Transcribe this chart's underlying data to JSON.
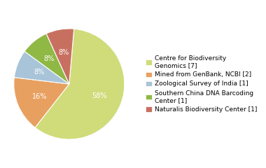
{
  "labels": [
    "Centre for Biodiversity\nGenomics [7]",
    "Mined from GenBank, NCBI [2]",
    "Zoological Survey of India [1]",
    "Southern China DNA Barcoding\nCenter [1]",
    "Naturalis Biodiversity Center [1]"
  ],
  "values": [
    58,
    16,
    8,
    8,
    8
  ],
  "colors": [
    "#d0db7a",
    "#e8a060",
    "#a8c4d8",
    "#90b845",
    "#c87060"
  ],
  "pct_labels": [
    "58%",
    "16%",
    "8%",
    "8%",
    "8%"
  ],
  "startangle": 85,
  "background_color": "#ffffff",
  "pct_font_size": 7.0,
  "legend_font_size": 6.5
}
